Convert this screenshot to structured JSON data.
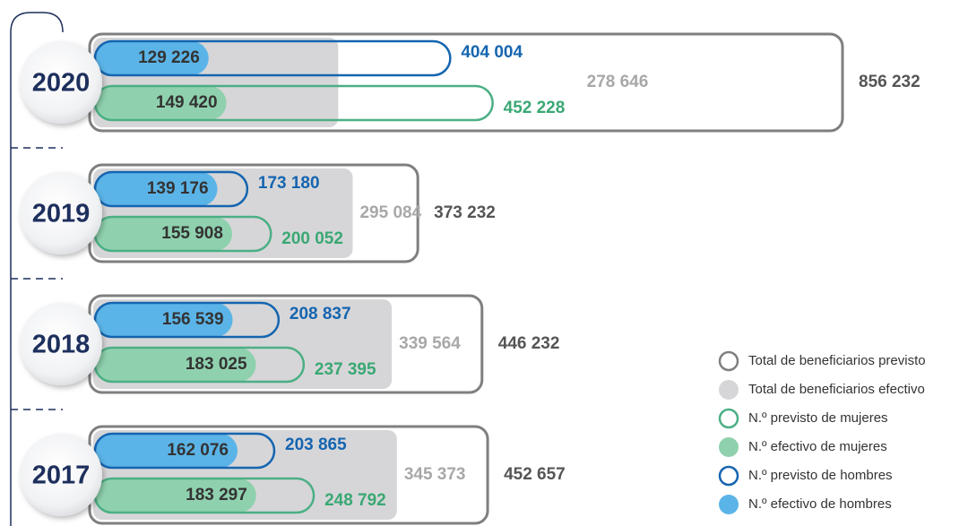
{
  "chart_data": {
    "type": "nested-bar",
    "categories": [
      "2020",
      "2019",
      "2018",
      "2017"
    ],
    "series": [
      {
        "name": "Total de beneficiarios previsto",
        "color": "#7f7f7f",
        "style": "outline",
        "group": "total",
        "values": [
          856232,
          373232,
          446232,
          452657
        ],
        "value_labels": [
          "856 232",
          "373 232",
          "446 232",
          "452 657"
        ]
      },
      {
        "name": "Total de beneficiarios efectivo",
        "color": "#d6d6d8",
        "style": "fill",
        "group": "total",
        "values": [
          278646,
          295084,
          339564,
          345373
        ],
        "value_labels": [
          "278 646",
          "295 084",
          "339 564",
          "345 373"
        ]
      },
      {
        "name": "N.º previsto de mujeres",
        "color": "#4caf85",
        "style": "outline",
        "group": "mujeres",
        "values": [
          452228,
          200052,
          237395,
          248792
        ],
        "value_labels": [
          "452 228",
          "200 052",
          "237 395",
          "248 792"
        ]
      },
      {
        "name": "N.º efectivo de mujeres",
        "color": "#8fd1ae",
        "style": "fill",
        "group": "mujeres",
        "values": [
          149420,
          155908,
          183025,
          183297
        ],
        "value_labels": [
          "149 420",
          "155 908",
          "183 025",
          "183 297"
        ]
      },
      {
        "name": "N.º previsto de hombres",
        "color": "#1565b0",
        "style": "outline",
        "group": "hombres",
        "values": [
          404004,
          173180,
          208837,
          203865
        ],
        "value_labels": [
          "404 004",
          "173 180",
          "208 837",
          "203 865"
        ]
      },
      {
        "name": "N.º efectivo de hombres",
        "color": "#5bb4e8",
        "style": "fill",
        "group": "hombres",
        "values": [
          129226,
          139176,
          156539,
          162076
        ],
        "value_labels": [
          "129 226",
          "139 176",
          "156 539",
          "162 076"
        ]
      }
    ]
  }
}
